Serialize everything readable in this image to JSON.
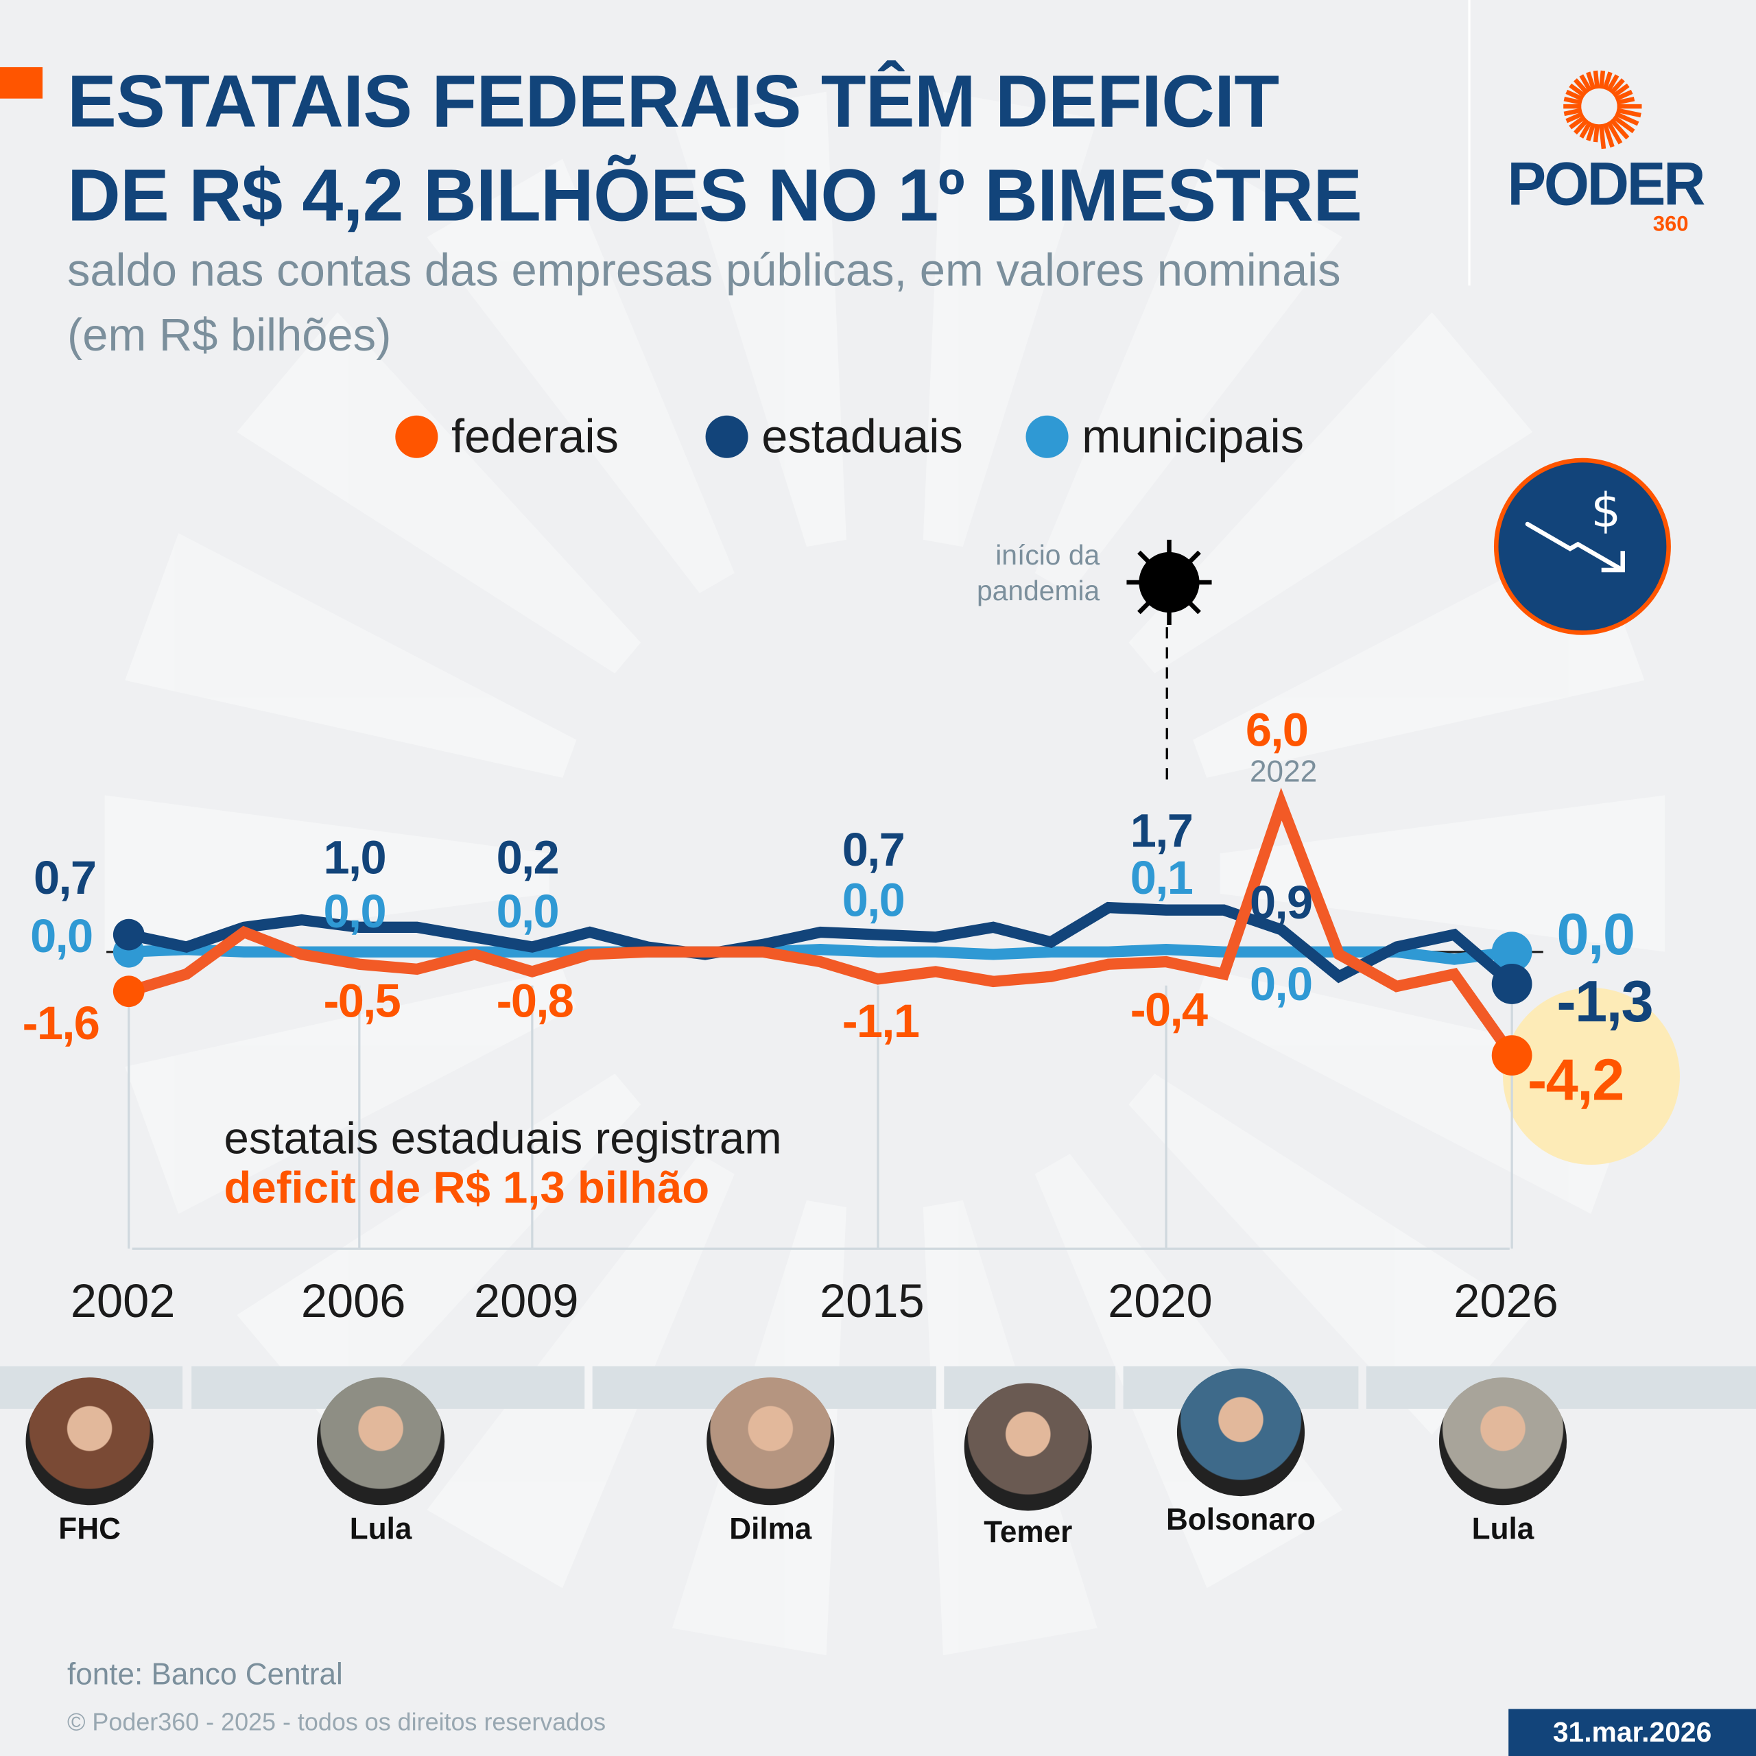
{
  "header": {
    "title_line1": "ESTATAIS FEDERAIS TÊM DEFICIT",
    "title_line2": "DE R$ 4,2 BILHÕES NO 1º BIMESTRE",
    "subtitle": "saldo nas contas das empresas públicas, em valores nominais (em R$ bilhões)",
    "accent_color": "#ff5500"
  },
  "logo": {
    "text": "PODER",
    "sub": "360"
  },
  "icon": "falling-money-chart-icon",
  "annotation_pandemic": {
    "line1": "início da",
    "line2": "pandemia",
    "icon": "virus-icon"
  },
  "peak_year_label": "2022",
  "highlight": {
    "line1": "estatais estaduais registram",
    "line2": "deficit de R$ 1,3 bilhão"
  },
  "chart_data": {
    "type": "line",
    "x": [
      2002,
      2003,
      2004,
      2005,
      2006,
      2007,
      2008,
      2009,
      2010,
      2011,
      2012,
      2013,
      2014,
      2015,
      2016,
      2017,
      2018,
      2019,
      2020,
      2021,
      2022,
      2023,
      2024,
      2025,
      2026
    ],
    "x_tick_labels": [
      "2002",
      "2006",
      "2009",
      "2015",
      "2020",
      "2026"
    ],
    "grid": false,
    "legend_position": "top",
    "series": [
      {
        "name": "federais",
        "color": "#f25a26",
        "values": [
          -1.6,
          -0.9,
          0.8,
          -0.1,
          -0.5,
          -0.7,
          -0.1,
          -0.8,
          -0.1,
          0.0,
          0.0,
          0.0,
          -0.4,
          -1.1,
          -0.8,
          -1.2,
          -1.0,
          -0.5,
          -0.4,
          -0.9,
          6.0,
          -0.1,
          -1.4,
          -0.9,
          -4.2
        ]
      },
      {
        "name": "estaduais",
        "color": "#12447a",
        "values": [
          0.7,
          0.2,
          1.0,
          1.3,
          1.0,
          1.0,
          0.6,
          0.2,
          0.8,
          0.2,
          -0.1,
          0.3,
          0.8,
          0.7,
          0.6,
          1.0,
          0.4,
          1.8,
          1.7,
          1.7,
          0.9,
          -1.0,
          0.2,
          0.7,
          -1.3
        ]
      },
      {
        "name": "municipais",
        "color": "#2f99d4",
        "values": [
          0.0,
          0.1,
          0.0,
          0.0,
          0.0,
          0.0,
          0.0,
          0.0,
          0.0,
          0.0,
          0.0,
          0.0,
          0.1,
          0.0,
          0.0,
          -0.1,
          0.0,
          0.0,
          0.1,
          0.0,
          0.0,
          0.0,
          0.0,
          -0.3,
          0.0
        ]
      }
    ],
    "data_labels": [
      {
        "series": "estaduais",
        "year": 2002,
        "text": "0,7"
      },
      {
        "series": "municipais",
        "year": 2002,
        "text": "0,0"
      },
      {
        "series": "federais",
        "year": 2002,
        "text": "-1,6"
      },
      {
        "series": "estaduais",
        "year": 2006,
        "text": "1,0"
      },
      {
        "series": "municipais",
        "year": 2006,
        "text": "0,0"
      },
      {
        "series": "federais",
        "year": 2006,
        "text": "-0,5"
      },
      {
        "series": "estaduais",
        "year": 2009,
        "text": "0,2"
      },
      {
        "series": "municipais",
        "year": 2009,
        "text": "0,0"
      },
      {
        "series": "federais",
        "year": 2009,
        "text": "-0,8"
      },
      {
        "series": "estaduais",
        "year": 2015,
        "text": "0,7"
      },
      {
        "series": "municipais",
        "year": 2015,
        "text": "0,0"
      },
      {
        "series": "federais",
        "year": 2015,
        "text": "-1,1"
      },
      {
        "series": "estaduais",
        "year": 2020,
        "text": "1,7"
      },
      {
        "series": "municipais",
        "year": 2020,
        "text": "0,1"
      },
      {
        "series": "federais",
        "year": 2020,
        "text": "-0,4"
      },
      {
        "series": "federais",
        "year": 2022,
        "text": "6,0"
      },
      {
        "series": "estaduais",
        "year": 2022,
        "text": "0,9"
      },
      {
        "series": "municipais",
        "year": 2022,
        "text": "0,0"
      },
      {
        "series": "municipais",
        "year": 2026,
        "text": "0,0"
      },
      {
        "series": "estaduais",
        "year": 2026,
        "text": "-1,3"
      },
      {
        "series": "federais",
        "year": 2026,
        "text": "-4,2"
      }
    ]
  },
  "presidents": [
    {
      "name": "FHC",
      "photo": "fhc-portrait"
    },
    {
      "name": "Lula",
      "photo": "lula-portrait"
    },
    {
      "name": "Dilma",
      "photo": "dilma-portrait"
    },
    {
      "name": "Temer",
      "photo": "temer-portrait"
    },
    {
      "name": "Bolsonaro",
      "photo": "bolsonaro-portrait"
    },
    {
      "name": "Lula",
      "photo": "lula-portrait"
    }
  ],
  "footer": {
    "source": "fonte: Banco Central",
    "copyright": "© Poder360 - 2025 - todos os direitos reservados",
    "date": "31.mar.2026"
  }
}
